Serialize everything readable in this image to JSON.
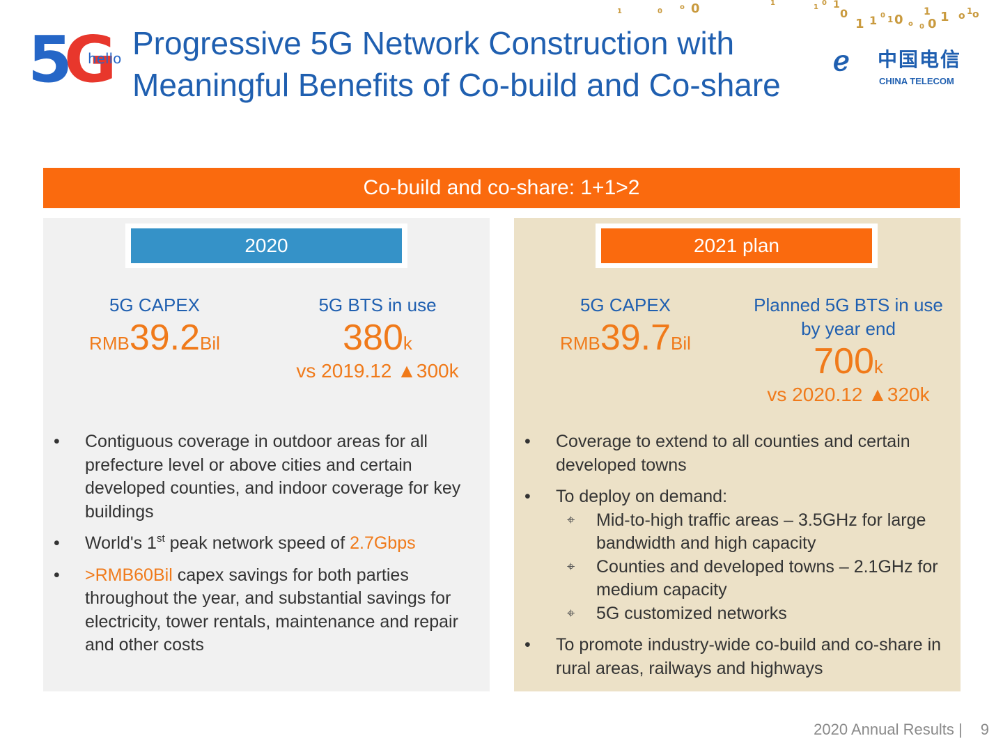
{
  "logo": {
    "mark": "5G",
    "tag": "hello"
  },
  "title": {
    "line1": "Progressive 5G Network Construction with",
    "line2": "Meaningful Benefits of Co-build and Co-share"
  },
  "brand": {
    "chinese": "中国电信",
    "english": "CHINA TELECOM"
  },
  "banner": "Co-build and co-share: 1+1>2",
  "left": {
    "header": "2020",
    "capex": {
      "label": "5G CAPEX",
      "prefix": "RMB",
      "value": "39.2",
      "unit": "Bil"
    },
    "bts": {
      "label": "5G BTS in use",
      "value": "380",
      "unit": "k",
      "compare": "vs 2019.12",
      "delta": "300k"
    },
    "bullets": {
      "b1": "Contiguous coverage in outdoor areas for all prefecture level or above cities and certain developed counties, and indoor coverage for key buildings",
      "b2_pre": "World's 1",
      "b2_sup": "st",
      "b2_mid": " peak network speed of ",
      "b2_hl": "2.7Gbps",
      "b3_hl": ">RMB60Bil",
      "b3_rest": " capex savings for both parties throughout the year, and substantial savings for electricity, tower rentals, maintenance and repair and other costs"
    }
  },
  "right": {
    "header": "2021 plan",
    "capex": {
      "label": "5G CAPEX",
      "prefix": "RMB",
      "value": "39.7",
      "unit": "Bil"
    },
    "bts": {
      "label_line1": "Planned 5G BTS in use",
      "label_line2": "by year end",
      "value": "700",
      "unit": "k",
      "compare": "vs 2020.12",
      "delta": "320k"
    },
    "bullets": {
      "b1": "Coverage to extend to all counties and certain developed towns",
      "b2": "To deploy on demand:",
      "sub": [
        "Mid-to-high traffic areas – 3.5GHz for large bandwidth and high capacity",
        "Counties and developed towns – 2.1GHz for medium capacity",
        "5G customized networks"
      ],
      "b3": "To promote industry-wide co-build and co-share in rural areas, railways and highways"
    }
  },
  "footer": {
    "label": "2020 Annual Results |",
    "page": "9"
  },
  "colors": {
    "accent_orange": "#fa6a0e",
    "brand_blue": "#1f5fb0",
    "pill_blue": "#3592c8",
    "value_orange": "#f07a1a"
  }
}
